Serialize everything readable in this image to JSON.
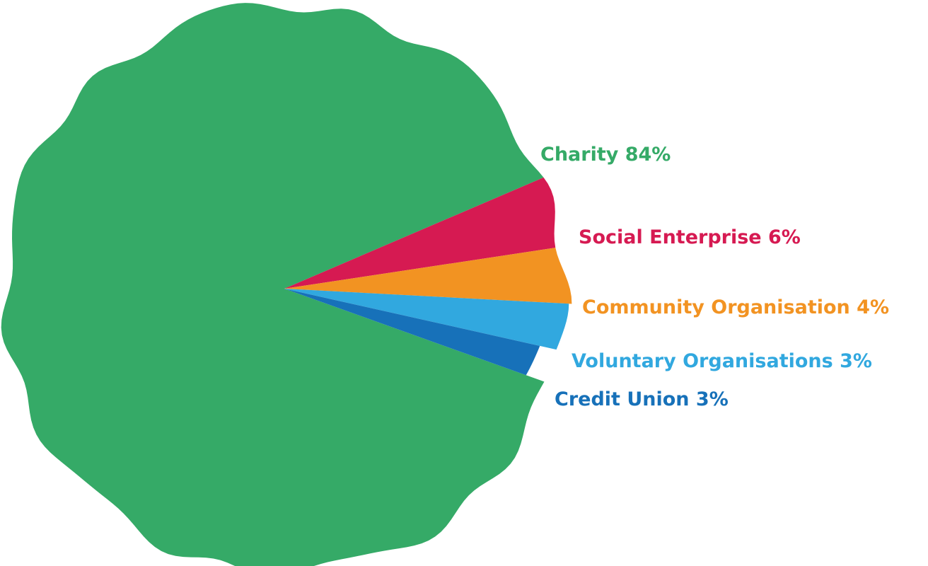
{
  "chart_data": {
    "type": "pie",
    "title": "",
    "slices": [
      {
        "label": "Charity 84%",
        "name": "Charity",
        "value": 84,
        "color": "#35AA67"
      },
      {
        "label": "Social Enterprise 6%",
        "name": "Social Enterprise",
        "value": 6,
        "color": "#D61A52"
      },
      {
        "label": "Community Organisation 4%",
        "name": "Community Organisation",
        "value": 4,
        "color": "#F29322"
      },
      {
        "label": "Voluntary Organisations 3%",
        "name": "Voluntary Organisations",
        "value": 3,
        "color": "#31A8DF"
      },
      {
        "label": "Credit Union 3%",
        "name": "Credit Union",
        "value": 3,
        "color": "#1771B9"
      }
    ],
    "legend": "none"
  }
}
